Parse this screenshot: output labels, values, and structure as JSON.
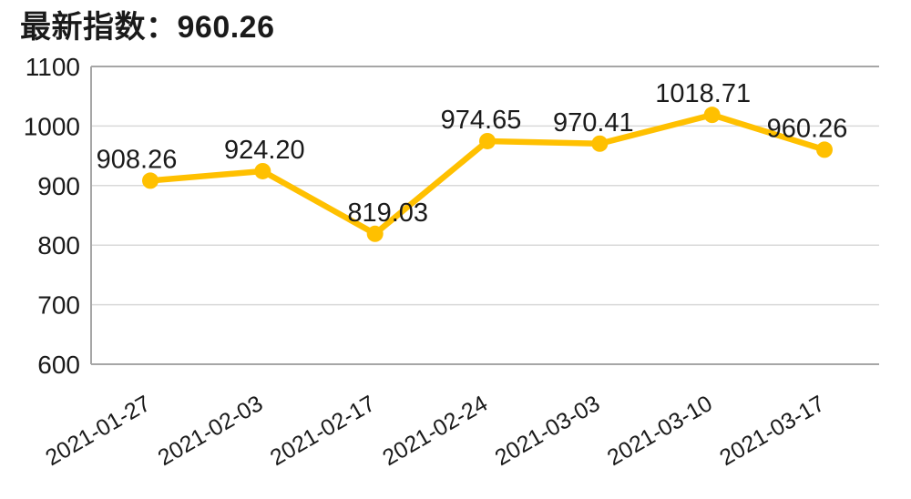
{
  "title": "最新指数：960.26",
  "colors": {
    "line": "#FFC000",
    "marker": "#FFC000",
    "gridline": "#D9D9D9",
    "axis_border": "#A6A6A6",
    "text": "#1A1A1A",
    "background": "#FFFFFF"
  },
  "chart_data": {
    "type": "line",
    "title": "最新指数：960.26",
    "categories": [
      "2021-01-27",
      "2021-02-03",
      "2021-02-17",
      "2021-02-24",
      "2021-03-03",
      "2021-03-10",
      "2021-03-17"
    ],
    "values": [
      908.26,
      924.2,
      819.03,
      974.65,
      970.41,
      1018.71,
      960.26
    ],
    "data_labels": [
      "908.26",
      "924.20",
      "819.03",
      "974.65",
      "970.41",
      "1018.71",
      "960.26"
    ],
    "xlabel": "",
    "ylabel": "",
    "ylim": [
      600,
      1100
    ],
    "y_ticks": [
      600,
      700,
      800,
      900,
      1000,
      1100
    ],
    "grid": true,
    "legend": "none",
    "x_label_rotation": -30
  }
}
